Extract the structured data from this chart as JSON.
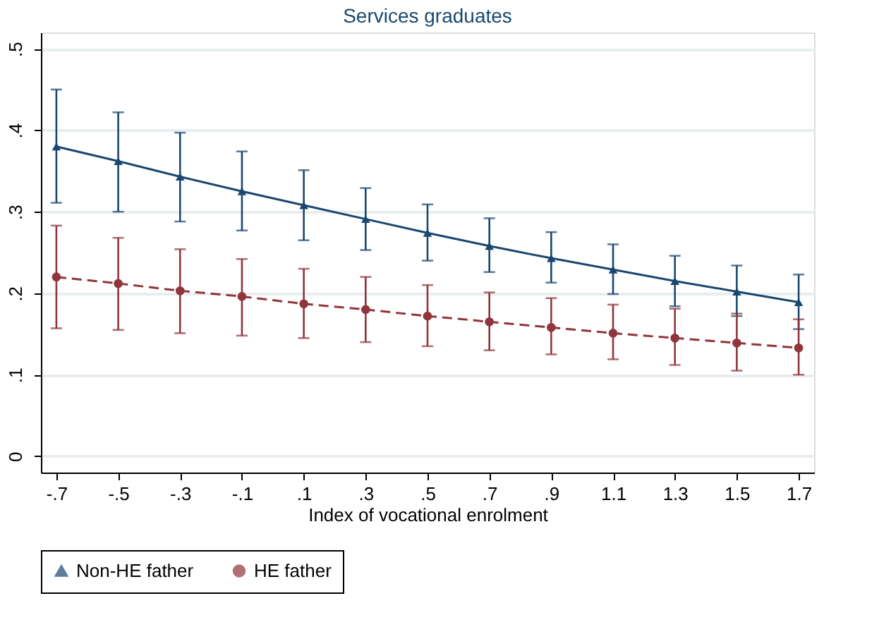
{
  "chart_data": {
    "type": "line",
    "title": "Services graduates",
    "xlabel": "Index of vocational enrolment",
    "x": [
      -0.7,
      -0.5,
      -0.3,
      -0.1,
      0.1,
      0.3,
      0.5,
      0.7,
      0.9,
      1.1,
      1.3,
      1.5,
      1.7
    ],
    "xlim": [
      -0.75,
      1.75
    ],
    "xticks": [
      {
        "value": -0.7,
        "label": "-.7"
      },
      {
        "value": -0.5,
        "label": "-.5"
      },
      {
        "value": -0.3,
        "label": "-.3"
      },
      {
        "value": -0.1,
        "label": "-.1"
      },
      {
        "value": 0.1,
        "label": ".1"
      },
      {
        "value": 0.3,
        "label": ".3"
      },
      {
        "value": 0.5,
        "label": ".5"
      },
      {
        "value": 0.7,
        "label": ".7"
      },
      {
        "value": 0.9,
        "label": ".9"
      },
      {
        "value": 1.1,
        "label": "1.1"
      },
      {
        "value": 1.3,
        "label": "1.3"
      },
      {
        "value": 1.5,
        "label": "1.5"
      },
      {
        "value": 1.7,
        "label": "1.7"
      }
    ],
    "ylim": [
      -0.02,
      0.52
    ],
    "yticks": [
      0,
      {
        "value": 0.1,
        "label": ".1"
      },
      {
        "value": 0.2,
        "label": ".2"
      },
      {
        "value": 0.3,
        "label": ".3"
      },
      {
        "value": 0.4,
        "label": ".4"
      },
      {
        "value": 0.5,
        "label": ".5"
      }
    ],
    "grid": "y",
    "legend": "bottom",
    "series": [
      {
        "name": "Non-HE father",
        "color": "#1a476f",
        "marker": "triangle",
        "line_style": "solid",
        "values": [
          0.38,
          0.362,
          0.343,
          0.325,
          0.308,
          0.291,
          0.274,
          0.258,
          0.243,
          0.229,
          0.215,
          0.202,
          0.189
        ],
        "errors": [
          [
            0.311,
            0.45
          ],
          [
            0.3,
            0.422
          ],
          [
            0.288,
            0.397
          ],
          [
            0.277,
            0.374
          ],
          [
            0.265,
            0.351
          ],
          [
            0.253,
            0.329
          ],
          [
            0.24,
            0.309
          ],
          [
            0.226,
            0.292
          ],
          [
            0.213,
            0.275
          ],
          [
            0.199,
            0.26
          ],
          [
            0.184,
            0.246
          ],
          [
            0.172,
            0.234
          ],
          [
            0.156,
            0.223
          ]
        ]
      },
      {
        "name": "HE father",
        "color": "#90353b",
        "marker": "circle",
        "line_style": "dashed",
        "values": [
          0.22,
          0.212,
          0.203,
          0.196,
          0.187,
          0.18,
          0.172,
          0.165,
          0.158,
          0.151,
          0.145,
          0.139,
          0.133
        ],
        "errors": [
          [
            0.157,
            0.283
          ],
          [
            0.155,
            0.268
          ],
          [
            0.151,
            0.254
          ],
          [
            0.148,
            0.242
          ],
          [
            0.145,
            0.23
          ],
          [
            0.14,
            0.22
          ],
          [
            0.135,
            0.21
          ],
          [
            0.13,
            0.201
          ],
          [
            0.125,
            0.194
          ],
          [
            0.119,
            0.186
          ],
          [
            0.112,
            0.181
          ],
          [
            0.105,
            0.175
          ],
          [
            0.1,
            0.168
          ]
        ]
      }
    ]
  }
}
